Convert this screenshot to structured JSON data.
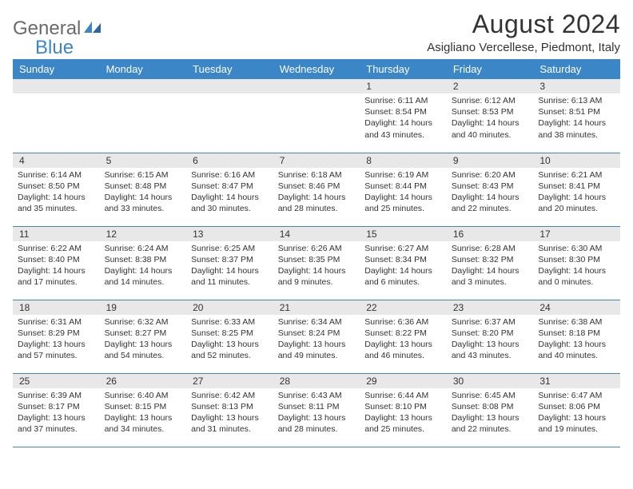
{
  "logo": {
    "gray": "General",
    "blue": "Blue"
  },
  "title": "August 2024",
  "subtitle": "Asigliano Vercellese, Piedmont, Italy",
  "header_bg": "#3b86c6",
  "daynum_bg": "#e8e8e8",
  "day_headers": [
    "Sunday",
    "Monday",
    "Tuesday",
    "Wednesday",
    "Thursday",
    "Friday",
    "Saturday"
  ],
  "weeks": [
    [
      null,
      null,
      null,
      null,
      {
        "n": "1",
        "sr": "6:11 AM",
        "ss": "8:54 PM",
        "dh": "14",
        "dm": "43"
      },
      {
        "n": "2",
        "sr": "6:12 AM",
        "ss": "8:53 PM",
        "dh": "14",
        "dm": "40"
      },
      {
        "n": "3",
        "sr": "6:13 AM",
        "ss": "8:51 PM",
        "dh": "14",
        "dm": "38"
      }
    ],
    [
      {
        "n": "4",
        "sr": "6:14 AM",
        "ss": "8:50 PM",
        "dh": "14",
        "dm": "35"
      },
      {
        "n": "5",
        "sr": "6:15 AM",
        "ss": "8:48 PM",
        "dh": "14",
        "dm": "33"
      },
      {
        "n": "6",
        "sr": "6:16 AM",
        "ss": "8:47 PM",
        "dh": "14",
        "dm": "30"
      },
      {
        "n": "7",
        "sr": "6:18 AM",
        "ss": "8:46 PM",
        "dh": "14",
        "dm": "28"
      },
      {
        "n": "8",
        "sr": "6:19 AM",
        "ss": "8:44 PM",
        "dh": "14",
        "dm": "25"
      },
      {
        "n": "9",
        "sr": "6:20 AM",
        "ss": "8:43 PM",
        "dh": "14",
        "dm": "22"
      },
      {
        "n": "10",
        "sr": "6:21 AM",
        "ss": "8:41 PM",
        "dh": "14",
        "dm": "20"
      }
    ],
    [
      {
        "n": "11",
        "sr": "6:22 AM",
        "ss": "8:40 PM",
        "dh": "14",
        "dm": "17"
      },
      {
        "n": "12",
        "sr": "6:24 AM",
        "ss": "8:38 PM",
        "dh": "14",
        "dm": "14"
      },
      {
        "n": "13",
        "sr": "6:25 AM",
        "ss": "8:37 PM",
        "dh": "14",
        "dm": "11"
      },
      {
        "n": "14",
        "sr": "6:26 AM",
        "ss": "8:35 PM",
        "dh": "14",
        "dm": "9"
      },
      {
        "n": "15",
        "sr": "6:27 AM",
        "ss": "8:34 PM",
        "dh": "14",
        "dm": "6"
      },
      {
        "n": "16",
        "sr": "6:28 AM",
        "ss": "8:32 PM",
        "dh": "14",
        "dm": "3"
      },
      {
        "n": "17",
        "sr": "6:30 AM",
        "ss": "8:30 PM",
        "dh": "14",
        "dm": "0"
      }
    ],
    [
      {
        "n": "18",
        "sr": "6:31 AM",
        "ss": "8:29 PM",
        "dh": "13",
        "dm": "57"
      },
      {
        "n": "19",
        "sr": "6:32 AM",
        "ss": "8:27 PM",
        "dh": "13",
        "dm": "54"
      },
      {
        "n": "20",
        "sr": "6:33 AM",
        "ss": "8:25 PM",
        "dh": "13",
        "dm": "52"
      },
      {
        "n": "21",
        "sr": "6:34 AM",
        "ss": "8:24 PM",
        "dh": "13",
        "dm": "49"
      },
      {
        "n": "22",
        "sr": "6:36 AM",
        "ss": "8:22 PM",
        "dh": "13",
        "dm": "46"
      },
      {
        "n": "23",
        "sr": "6:37 AM",
        "ss": "8:20 PM",
        "dh": "13",
        "dm": "43"
      },
      {
        "n": "24",
        "sr": "6:38 AM",
        "ss": "8:18 PM",
        "dh": "13",
        "dm": "40"
      }
    ],
    [
      {
        "n": "25",
        "sr": "6:39 AM",
        "ss": "8:17 PM",
        "dh": "13",
        "dm": "37"
      },
      {
        "n": "26",
        "sr": "6:40 AM",
        "ss": "8:15 PM",
        "dh": "13",
        "dm": "34"
      },
      {
        "n": "27",
        "sr": "6:42 AM",
        "ss": "8:13 PM",
        "dh": "13",
        "dm": "31"
      },
      {
        "n": "28",
        "sr": "6:43 AM",
        "ss": "8:11 PM",
        "dh": "13",
        "dm": "28"
      },
      {
        "n": "29",
        "sr": "6:44 AM",
        "ss": "8:10 PM",
        "dh": "13",
        "dm": "25"
      },
      {
        "n": "30",
        "sr": "6:45 AM",
        "ss": "8:08 PM",
        "dh": "13",
        "dm": "22"
      },
      {
        "n": "31",
        "sr": "6:47 AM",
        "ss": "8:06 PM",
        "dh": "13",
        "dm": "19"
      }
    ]
  ],
  "labels": {
    "sunrise": "Sunrise: ",
    "sunset": "Sunset: ",
    "daylight_pre": "Daylight: ",
    "hours": " hours",
    "and": "and ",
    "minutes": " minutes."
  }
}
